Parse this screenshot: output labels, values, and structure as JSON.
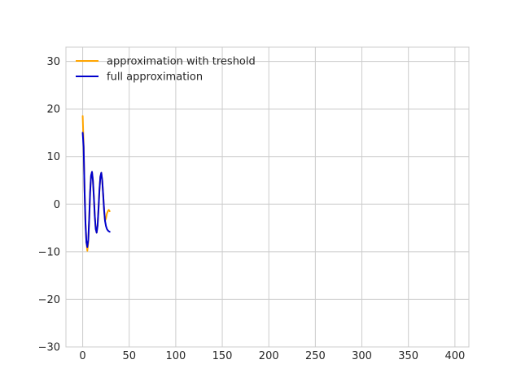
{
  "chart_data": {
    "type": "line",
    "title": "",
    "xlabel": "",
    "ylabel": "",
    "xlim": [
      -18,
      415
    ],
    "ylim": [
      -30,
      33
    ],
    "grid": true,
    "legend_position": "top-left",
    "x_ticks": [
      0,
      50,
      100,
      150,
      200,
      250,
      300,
      350,
      400
    ],
    "y_ticks": [
      -30,
      -20,
      -10,
      0,
      10,
      20,
      30
    ],
    "x_tick_labels": [
      "0",
      "50",
      "100",
      "150",
      "200",
      "250",
      "300",
      "350",
      "400"
    ],
    "y_tick_labels": [
      "−30",
      "−20",
      "−10",
      "0",
      "10",
      "20",
      "30"
    ],
    "series": [
      {
        "name": "approximation with treshold",
        "color": "#FFA500",
        "x": [
          0,
          1,
          2,
          3,
          4,
          5,
          6,
          7,
          8,
          9,
          10,
          11,
          12,
          13,
          14,
          15,
          16,
          17,
          18,
          19,
          20,
          21,
          22,
          23,
          24,
          25,
          26,
          27,
          28,
          29
        ],
        "y": [
          18.5,
          12.5,
          3.0,
          -4.0,
          -8.0,
          -9.8,
          -8.0,
          -3.0,
          2.5,
          6.0,
          6.8,
          5.0,
          1.5,
          -2.5,
          -5.2,
          -6.0,
          -4.5,
          -1.0,
          3.0,
          5.8,
          6.6,
          5.0,
          2.0,
          -1.2,
          -3.5,
          -3.0,
          -2.0,
          -1.5,
          -1.2,
          -1.5
        ]
      },
      {
        "name": "full approximation",
        "color": "#0000CC",
        "x": [
          0,
          1,
          2,
          3,
          4,
          5,
          6,
          7,
          8,
          9,
          10,
          11,
          12,
          13,
          14,
          15,
          16,
          17,
          18,
          19,
          20,
          21,
          22,
          23,
          24,
          25,
          26,
          27,
          28,
          29
        ],
        "y": [
          15.0,
          12.0,
          3.0,
          -4.0,
          -8.0,
          -9.0,
          -7.5,
          -3.0,
          2.5,
          6.0,
          6.8,
          5.0,
          1.5,
          -2.5,
          -5.2,
          -6.0,
          -4.5,
          -1.0,
          3.0,
          5.8,
          6.6,
          5.0,
          2.0,
          -1.2,
          -3.5,
          -4.6,
          -5.2,
          -5.5,
          -5.7,
          -5.8
        ]
      }
    ]
  }
}
